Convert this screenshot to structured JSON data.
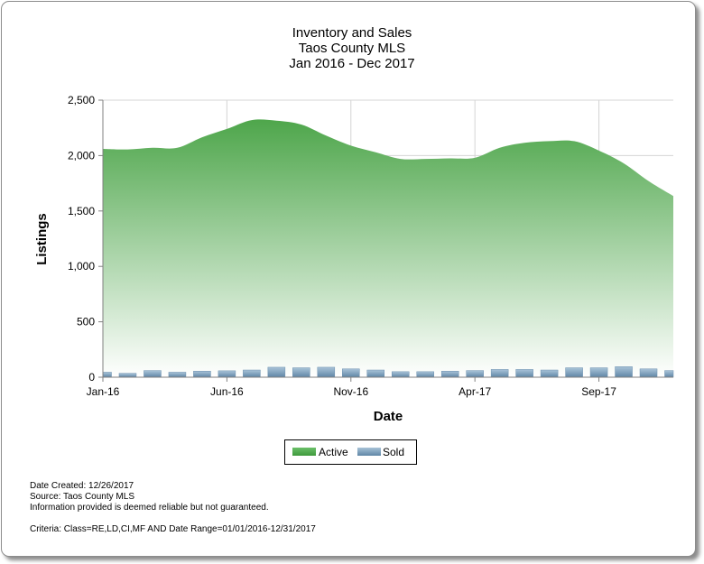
{
  "chart_data": {
    "type": "area",
    "title": "Inventory and Sales",
    "subtitle": "Taos County MLS",
    "date_range": "Jan 2016 - Dec 2017",
    "xlabel": "Date",
    "ylabel": "Listings",
    "ylim": [
      0,
      2500
    ],
    "yticks": [
      "0",
      "500",
      "1,000",
      "1,500",
      "2,000",
      "2,500"
    ],
    "xtick_labels": [
      {
        "index": 0,
        "label": "Jan-16"
      },
      {
        "index": 5,
        "label": "Jun-16"
      },
      {
        "index": 10,
        "label": "Nov-16"
      },
      {
        "index": 15,
        "label": "Apr-17"
      },
      {
        "index": 20,
        "label": "Sep-17"
      }
    ],
    "categories": [
      "Jan-16",
      "Feb-16",
      "Mar-16",
      "Apr-16",
      "May-16",
      "Jun-16",
      "Jul-16",
      "Aug-16",
      "Sep-16",
      "Oct-16",
      "Nov-16",
      "Dec-16",
      "Jan-17",
      "Feb-17",
      "Mar-17",
      "Apr-17",
      "May-17",
      "Jun-17",
      "Jul-17",
      "Aug-17",
      "Sep-17",
      "Oct-17",
      "Nov-17",
      "Dec-17"
    ],
    "grid": true,
    "legend_placement": "bottom-center",
    "series": [
      {
        "name": "Active",
        "type": "area",
        "color": "#4ea64b",
        "values": [
          2060,
          2055,
          2070,
          2070,
          2165,
          2240,
          2320,
          2315,
          2280,
          2180,
          2090,
          2030,
          1970,
          1970,
          1975,
          1980,
          2070,
          2115,
          2130,
          2130,
          2045,
          1930,
          1770,
          1635
        ]
      },
      {
        "name": "Sold",
        "type": "bar",
        "color": "#7fa3bf",
        "values": [
          45,
          35,
          60,
          45,
          55,
          58,
          65,
          90,
          85,
          90,
          75,
          65,
          50,
          50,
          55,
          60,
          70,
          70,
          65,
          85,
          85,
          95,
          75,
          60
        ]
      }
    ]
  },
  "footer": {
    "date_created": "Date Created: 12/26/2017",
    "source": "Source: Taos County MLS",
    "disclaimer": "Information provided is deemed reliable but not guaranteed.",
    "criteria": "Criteria: Class=RE,LD,CI,MF AND Date Range=01/01/2016-12/31/2017"
  }
}
